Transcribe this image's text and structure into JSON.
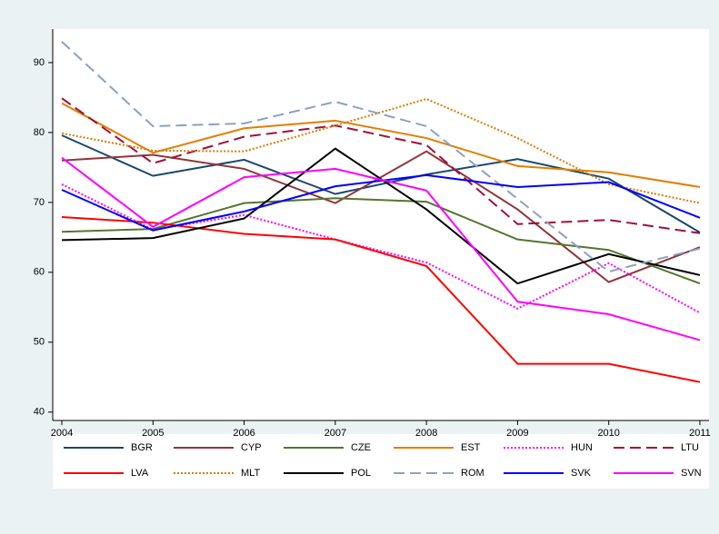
{
  "chart_data": {
    "type": "line",
    "x": [
      2004,
      2005,
      2006,
      2007,
      2008,
      2009,
      2010,
      2011
    ],
    "xlim": [
      2003.9,
      2011.1
    ],
    "xticks": [
      2004,
      2005,
      2006,
      2007,
      2008,
      2009,
      2010,
      2011
    ],
    "ylim": [
      38.8,
      94.8
    ],
    "yticks": [
      40,
      50,
      60,
      70,
      80,
      90
    ],
    "series": [
      {
        "name": "BGR",
        "color": "#1a476f",
        "style": "solid",
        "values": [
          79.6,
          73.8,
          76.1,
          71.2,
          74.0,
          76.2,
          73.4,
          65.7
        ]
      },
      {
        "name": "CYP",
        "color": "#90353b",
        "style": "solid",
        "values": [
          76.0,
          76.8,
          74.8,
          69.9,
          77.3,
          69.0,
          58.6,
          63.6
        ]
      },
      {
        "name": "CZE",
        "color": "#55752f",
        "style": "solid",
        "values": [
          65.8,
          66.2,
          69.9,
          70.6,
          70.1,
          64.7,
          63.2,
          58.4
        ]
      },
      {
        "name": "EST",
        "color": "#e37e00",
        "style": "solid",
        "values": [
          84.2,
          77.1,
          80.6,
          81.7,
          79.2,
          75.2,
          74.3,
          72.2
        ]
      },
      {
        "name": "HUN",
        "color": "#ff00ff",
        "style": "dotted",
        "values": [
          72.6,
          66.1,
          68.2,
          64.7,
          61.4,
          54.8,
          61.3,
          54.2
        ]
      },
      {
        "name": "LTU",
        "color": "#a0103b",
        "style": "dashed",
        "values": [
          84.9,
          75.6,
          79.4,
          81.0,
          78.2,
          66.9,
          67.5,
          65.6
        ]
      },
      {
        "name": "LVA",
        "color": "#ff0000",
        "style": "solid",
        "values": [
          67.9,
          67.1,
          65.5,
          64.7,
          60.9,
          46.9,
          46.9,
          44.3
        ]
      },
      {
        "name": "MLT",
        "color": "#d87a00",
        "style": "dotted",
        "values": [
          79.9,
          77.4,
          77.3,
          81.0,
          84.8,
          79.2,
          72.6,
          69.9
        ]
      },
      {
        "name": "POL",
        "color": "#000000",
        "style": "solid",
        "values": [
          64.6,
          64.9,
          67.7,
          77.7,
          69.0,
          58.4,
          62.6,
          59.6
        ]
      },
      {
        "name": "ROM",
        "color": "#8ca1c0",
        "style": "dashed",
        "values": [
          93.0,
          80.9,
          81.3,
          84.4,
          80.9,
          70.5,
          60.1,
          63.4
        ]
      },
      {
        "name": "SVK",
        "color": "#0000ff",
        "style": "solid",
        "values": [
          71.8,
          66.0,
          68.7,
          72.3,
          73.9,
          72.2,
          72.9,
          67.8
        ]
      },
      {
        "name": "SVN",
        "color": "#ff00ff",
        "style": "solid",
        "values": [
          76.4,
          66.5,
          73.6,
          74.8,
          71.7,
          55.8,
          54.0,
          50.3
        ]
      }
    ]
  }
}
